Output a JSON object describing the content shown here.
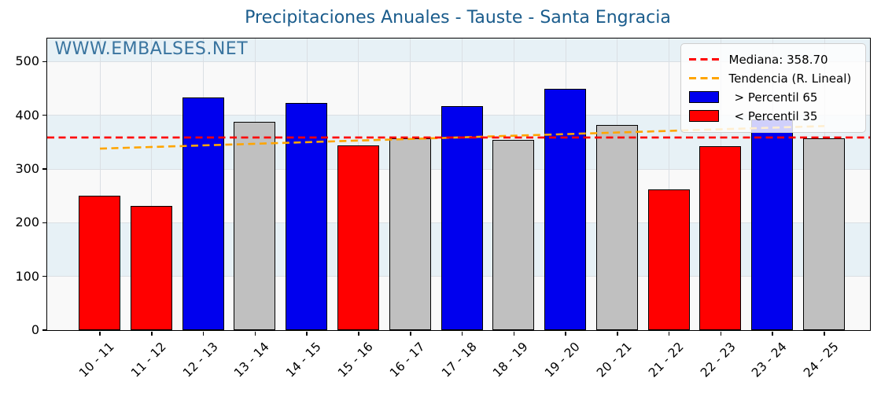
{
  "title": "Precipitaciones Anuales - Tauste - Santa Engracia",
  "watermark": "WWW.EMBALSES.NET",
  "legend": {
    "median": "Mediana: 358.70",
    "trend": "Tendencia (R. Lineal)",
    "above": "> Percentil 65",
    "below": "< Percentil 35"
  },
  "colors": {
    "above": "#0000EE",
    "below": "#FF0000",
    "mid": "#C0C0C0",
    "bar_edge": "#000000",
    "median_line": "#FF0000",
    "trend_line": "#FFA500",
    "title_text": "#1A5C8C",
    "watermark_text": "#39749F",
    "band_blue": "#E7F1F6",
    "band_white": "#F9F9F9",
    "grid_line": "#DADFE4"
  },
  "chart_data": {
    "type": "bar",
    "title": "Precipitaciones Anuales - Tauste - Santa Engracia",
    "xlabel": "",
    "ylabel": "",
    "categories": [
      "10 - 11",
      "11 - 12",
      "12 - 13",
      "13 - 14",
      "14 - 15",
      "15 - 16",
      "16 - 17",
      "17 - 18",
      "18 - 19",
      "19 - 20",
      "20 - 21",
      "21 - 22",
      "22 - 23",
      "23 - 24",
      "24 - 25"
    ],
    "values": [
      250,
      230,
      433,
      387,
      423,
      343,
      357,
      416,
      354,
      449,
      382,
      262,
      342,
      392,
      357
    ],
    "bar_classes": [
      "below",
      "below",
      "above",
      "mid",
      "above",
      "below",
      "mid",
      "above",
      "mid",
      "above",
      "mid",
      "below",
      "below",
      "above",
      "mid"
    ],
    "median": 358.7,
    "trend_linear": {
      "start_value": 338,
      "end_value": 380
    },
    "yticks": [
      0,
      100,
      200,
      300,
      400,
      500
    ],
    "ylim": [
      0,
      543
    ],
    "grid": true,
    "legend_position": "upper right",
    "legend_entries": [
      "Mediana: 358.70",
      "Tendencia (R. Lineal)",
      "> Percentil 65",
      "< Percentil 35"
    ],
    "series_note": "bar color encodes percentile class: above = > Percentil 65 (blue), below = < Percentil 35 (red), mid = between (gray)"
  }
}
